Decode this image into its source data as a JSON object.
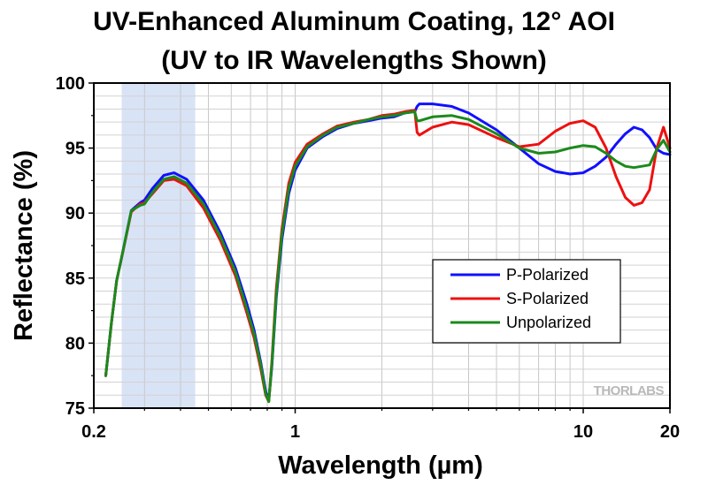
{
  "chart_data": {
    "type": "line",
    "title": [
      "UV-Enhanced Aluminum Coating, 12° AOI",
      "(UV to IR Wavelengths Shown)"
    ],
    "xlabel": "Wavelength (µm)",
    "ylabel": "Reflectance (%)",
    "xscale": "log",
    "xlim": [
      0.2,
      20
    ],
    "ylim": [
      75,
      100
    ],
    "x_ticks": [
      {
        "value": 0.2,
        "label": "0.2"
      },
      {
        "value": 1,
        "label": "1"
      },
      {
        "value": 10,
        "label": "10"
      },
      {
        "value": 20,
        "label": "20"
      }
    ],
    "y_ticks": [
      {
        "value": 75,
        "label": "75"
      },
      {
        "value": 80,
        "label": "80"
      },
      {
        "value": 85,
        "label": "85"
      },
      {
        "value": 90,
        "label": "90"
      },
      {
        "value": 95,
        "label": "95"
      },
      {
        "value": 100,
        "label": "100"
      }
    ],
    "grid": true,
    "highlight_band": {
      "x": [
        0.25,
        0.45
      ],
      "color": "#d9e3f6"
    },
    "legend_position": "right-center",
    "watermark": "THORLABS",
    "series": [
      {
        "name": "P-Polarized",
        "color": "#1010ff",
        "x": [
          0.22,
          0.23,
          0.24,
          0.25,
          0.27,
          0.29,
          0.3,
          0.32,
          0.35,
          0.38,
          0.42,
          0.48,
          0.55,
          0.62,
          0.68,
          0.72,
          0.76,
          0.79,
          0.81,
          0.83,
          0.86,
          0.9,
          0.95,
          1.0,
          1.1,
          1.25,
          1.4,
          1.6,
          1.8,
          2.0,
          2.2,
          2.4,
          2.6,
          2.65,
          2.7,
          3.0,
          3.5,
          4.0,
          5.0,
          6.0,
          7.0,
          8.0,
          9.0,
          10.0,
          11.0,
          12.0,
          13.0,
          14.0,
          15.0,
          16.0,
          17.0,
          18.0,
          19.0,
          20.0
        ],
        "y": [
          77.5,
          81.5,
          84.8,
          86.6,
          90.2,
          90.8,
          91.0,
          91.9,
          92.9,
          93.1,
          92.6,
          91.0,
          88.5,
          85.8,
          83.0,
          81.0,
          78.5,
          76.3,
          75.6,
          78.2,
          83.5,
          88.0,
          91.5,
          93.3,
          95.0,
          95.9,
          96.5,
          96.9,
          97.1,
          97.3,
          97.4,
          97.7,
          97.8,
          98.2,
          98.4,
          98.4,
          98.2,
          97.7,
          96.4,
          95.0,
          93.8,
          93.2,
          93.0,
          93.1,
          93.6,
          94.3,
          95.3,
          96.1,
          96.6,
          96.4,
          95.8,
          94.9,
          94.6,
          94.5
        ]
      },
      {
        "name": "S-Polarized",
        "color": "#ee1010",
        "x": [
          0.22,
          0.23,
          0.24,
          0.25,
          0.27,
          0.29,
          0.3,
          0.32,
          0.35,
          0.38,
          0.42,
          0.48,
          0.55,
          0.62,
          0.68,
          0.72,
          0.76,
          0.79,
          0.81,
          0.83,
          0.86,
          0.9,
          0.95,
          1.0,
          1.1,
          1.25,
          1.4,
          1.6,
          1.8,
          2.0,
          2.2,
          2.4,
          2.6,
          2.65,
          2.7,
          3.0,
          3.5,
          4.0,
          5.0,
          6.0,
          7.0,
          8.0,
          9.0,
          10.0,
          11.0,
          12.0,
          13.0,
          14.0,
          15.0,
          16.0,
          17.0,
          18.0,
          19.0,
          20.0
        ],
        "y": [
          77.5,
          81.5,
          84.8,
          86.6,
          90.1,
          90.7,
          90.8,
          91.5,
          92.5,
          92.6,
          92.1,
          90.4,
          87.9,
          85.2,
          82.3,
          80.4,
          78.0,
          76.0,
          75.5,
          78.6,
          84.2,
          88.8,
          92.3,
          93.9,
          95.3,
          96.1,
          96.7,
          97.0,
          97.2,
          97.5,
          97.6,
          97.8,
          97.9,
          96.2,
          96.0,
          96.6,
          97.0,
          96.8,
          95.8,
          95.1,
          95.3,
          96.3,
          96.9,
          97.1,
          96.6,
          95.0,
          92.8,
          91.2,
          90.6,
          90.8,
          91.8,
          95.0,
          96.6,
          95.0
        ]
      },
      {
        "name": "Unpolarized",
        "color": "#1b8a1b",
        "x": [
          0.22,
          0.23,
          0.24,
          0.25,
          0.27,
          0.29,
          0.3,
          0.32,
          0.35,
          0.38,
          0.42,
          0.48,
          0.55,
          0.62,
          0.68,
          0.72,
          0.76,
          0.79,
          0.81,
          0.83,
          0.86,
          0.9,
          0.95,
          1.0,
          1.1,
          1.25,
          1.4,
          1.6,
          1.8,
          2.0,
          2.2,
          2.4,
          2.6,
          2.65,
          2.7,
          3.0,
          3.5,
          4.0,
          5.0,
          6.0,
          7.0,
          8.0,
          9.0,
          10.0,
          11.0,
          12.0,
          13.0,
          14.0,
          15.0,
          16.0,
          17.0,
          18.0,
          19.0,
          20.0
        ],
        "y": [
          77.5,
          81.5,
          84.8,
          86.6,
          90.2,
          90.6,
          90.7,
          91.6,
          92.6,
          92.8,
          92.3,
          90.7,
          88.2,
          85.5,
          82.6,
          80.7,
          78.3,
          76.1,
          75.5,
          78.4,
          83.8,
          88.4,
          91.9,
          93.6,
          95.1,
          96.0,
          96.6,
          96.9,
          97.2,
          97.4,
          97.5,
          97.7,
          97.8,
          97.1,
          97.1,
          97.4,
          97.5,
          97.2,
          96.1,
          95.0,
          94.6,
          94.7,
          95.0,
          95.2,
          95.1,
          94.6,
          94.0,
          93.6,
          93.5,
          93.6,
          93.7,
          94.9,
          95.6,
          94.7
        ]
      }
    ]
  }
}
